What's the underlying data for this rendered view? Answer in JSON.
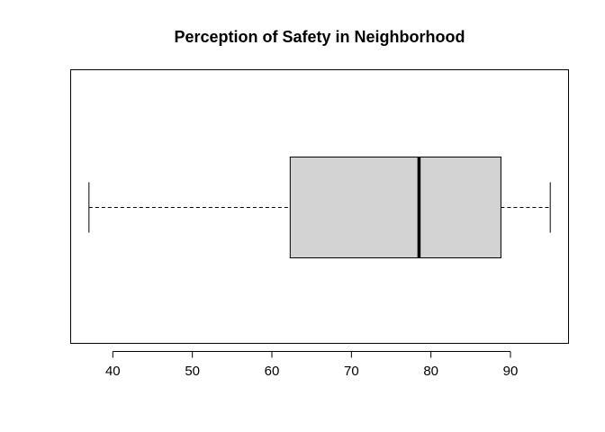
{
  "chart_data": {
    "type": "boxplot",
    "orientation": "horizontal",
    "title": "Perception of Safety in Neighborhood",
    "xlabel": "",
    "ylabel": "",
    "xlim": [
      34.7,
      97.3
    ],
    "ticks": [
      40,
      50,
      60,
      70,
      80,
      90
    ],
    "tick_labels": [
      "40",
      "50",
      "60",
      "70",
      "80",
      "90"
    ],
    "box": {
      "min": 37,
      "q1": 62.3,
      "median": 78.5,
      "q3": 88.8,
      "max": 95
    },
    "grid": false,
    "colors": {
      "box_fill": "#d3d3d3",
      "stroke": "#000000"
    }
  }
}
